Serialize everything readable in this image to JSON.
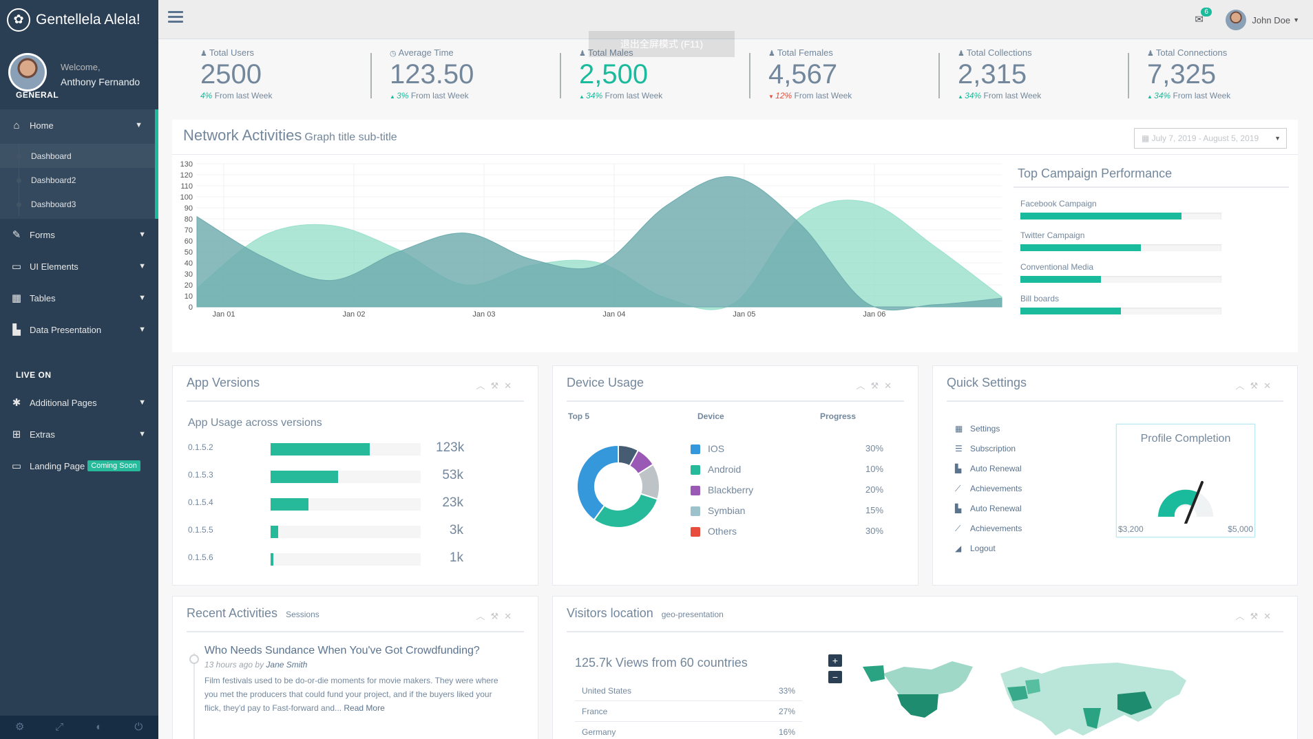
{
  "brand": {
    "name": "Gentellela Alela!"
  },
  "profile": {
    "welcome": "Welcome,",
    "name": "Anthony Fernando"
  },
  "sidebar": {
    "section_general": "GENERAL",
    "section_live": "LIVE ON",
    "home": "Home",
    "sub": [
      "Dashboard",
      "Dashboard2",
      "Dashboard3"
    ],
    "forms": "Forms",
    "ui_elements": "UI Elements",
    "tables": "Tables",
    "data_presentation": "Data Presentation",
    "additional_pages": "Additional Pages",
    "extras": "Extras",
    "landing_page": "Landing Page",
    "coming_soon": "Coming Soon"
  },
  "topnav": {
    "mail_count": "6",
    "user_name": "John Doe"
  },
  "overlay": {
    "text": "退出全屏模式 (F11)"
  },
  "stats": [
    {
      "label": "Total Users",
      "value": "2500",
      "pct": "4%",
      "change": "From last Week",
      "direction": "none",
      "highlight": false
    },
    {
      "label": "Average Time",
      "value": "123.50",
      "pct": "3%",
      "change": "From last Week",
      "direction": "up",
      "highlight": false
    },
    {
      "label": "Total Males",
      "value": "2,500",
      "pct": "34%",
      "change": "From last Week",
      "direction": "up",
      "highlight": true
    },
    {
      "label": "Total Females",
      "value": "4,567",
      "pct": "12%",
      "change": "From last Week",
      "direction": "down",
      "highlight": false
    },
    {
      "label": "Total Collections",
      "value": "2,315",
      "pct": "34%",
      "change": "From last Week",
      "direction": "up",
      "highlight": false
    },
    {
      "label": "Total Connections",
      "value": "7,325",
      "pct": "34%",
      "change": "From last Week",
      "direction": "up",
      "highlight": false
    }
  ],
  "network": {
    "title": "Network Activities",
    "subtitle": "Graph title sub-title",
    "daterange": "July 7, 2019 - August 5, 2019"
  },
  "chart_data": {
    "type": "area",
    "x_labels": [
      "Jan 01",
      "Jan 02",
      "Jan 03",
      "Jan 04",
      "Jan 05",
      "Jan 06"
    ],
    "ylim": [
      0,
      130
    ],
    "yticks": [
      0,
      10,
      20,
      30,
      40,
      50,
      60,
      70,
      80,
      90,
      100,
      110,
      120,
      130
    ],
    "series": [
      {
        "color": "#6BAAAD",
        "x": [
          0,
          0.5,
          1.0,
          1.5,
          2.0,
          2.5,
          3.0,
          3.5,
          4.0,
          4.5,
          5.0,
          5.5,
          6.0
        ],
        "values": [
          82,
          45,
          24,
          50,
          67,
          43,
          38,
          92,
          118,
          75,
          3,
          2,
          8
        ]
      },
      {
        "color": "#98E0CB",
        "x": [
          0,
          0.5,
          1.0,
          1.5,
          2.0,
          2.5,
          3.0,
          3.5,
          4.0,
          4.5,
          5.0,
          5.5,
          6.0
        ],
        "values": [
          17,
          65,
          74,
          52,
          20,
          38,
          40,
          8,
          3,
          82,
          95,
          55,
          9
        ]
      }
    ]
  },
  "campaigns": {
    "title": "Top Campaign Performance",
    "items": [
      {
        "label": "Facebook Campaign",
        "value": 80
      },
      {
        "label": "Twitter Campaign",
        "value": 60
      },
      {
        "label": "Conventional Media",
        "value": 40
      },
      {
        "label": "Bill boards",
        "value": 50
      }
    ]
  },
  "app_versions": {
    "title": "App Versions",
    "subtitle": "App Usage across versions",
    "rows": [
      {
        "label": "0.1.5.2",
        "value": 66,
        "count": "123k"
      },
      {
        "label": "0.1.5.3",
        "value": 45,
        "count": "53k"
      },
      {
        "label": "0.1.5.4",
        "value": 25,
        "count": "23k"
      },
      {
        "label": "0.1.5.5",
        "value": 5,
        "count": "3k"
      },
      {
        "label": "0.1.5.6",
        "value": 2,
        "count": "1k"
      }
    ]
  },
  "device_usage": {
    "title": "Device Usage",
    "head_top": "Top 5",
    "head_device": "Device",
    "head_progress": "Progress",
    "items": [
      {
        "name": "IOS",
        "pct": "30%",
        "color": "#3498DB"
      },
      {
        "name": "Android",
        "pct": "10%",
        "color": "#26B99A"
      },
      {
        "name": "Blackberry",
        "pct": "20%",
        "color": "#9B59B6"
      },
      {
        "name": "Symbian",
        "pct": "15%",
        "color": "#9CC2CB"
      },
      {
        "name": "Others",
        "pct": "30%",
        "color": "#E74C3C"
      }
    ],
    "donut": [
      {
        "value": 8,
        "color": "#455C73"
      },
      {
        "value": 8,
        "color": "#9B59B6"
      },
      {
        "value": 14,
        "color": "#BDC3C7"
      },
      {
        "value": 30,
        "color": "#26B99A"
      },
      {
        "value": 40,
        "color": "#3498DB"
      }
    ]
  },
  "quick_settings": {
    "title": "Quick Settings",
    "items": [
      {
        "label": "Settings",
        "icon": "calendar-icon"
      },
      {
        "label": "Subscription",
        "icon": "bars-icon"
      },
      {
        "label": "Auto Renewal",
        "icon": "bar-chart-icon"
      },
      {
        "label": "Achievements",
        "icon": "line-chart-icon"
      },
      {
        "label": "Auto Renewal",
        "icon": "bar-chart-icon"
      },
      {
        "label": "Achievements",
        "icon": "line-chart-icon"
      },
      {
        "label": "Logout",
        "icon": "area-chart-icon"
      }
    ],
    "profile_title": "Profile Completion",
    "gauge_min": "$3,200",
    "gauge_max": "$5,000"
  },
  "recent": {
    "title": "Recent Activities",
    "subtitle": "Sessions",
    "item_title": "Who Needs Sundance When You've Got Crowdfunding?",
    "item_time": "13 hours ago by",
    "item_author": "Jane Smith",
    "item_text": "Film festivals used to be do-or-die moments for movie makers. They were where you met the producers that could fund your project, and if the buyers liked your flick, they'd pay to Fast-forward and...",
    "read_more": "Read More"
  },
  "visitors": {
    "title": "Visitors location",
    "subtitle": "geo-presentation",
    "views": "125.7k Views from 60 countries",
    "rows": [
      {
        "country": "United States",
        "pct": "33%"
      },
      {
        "country": "France",
        "pct": "27%"
      },
      {
        "country": "Germany",
        "pct": "16%"
      }
    ]
  }
}
